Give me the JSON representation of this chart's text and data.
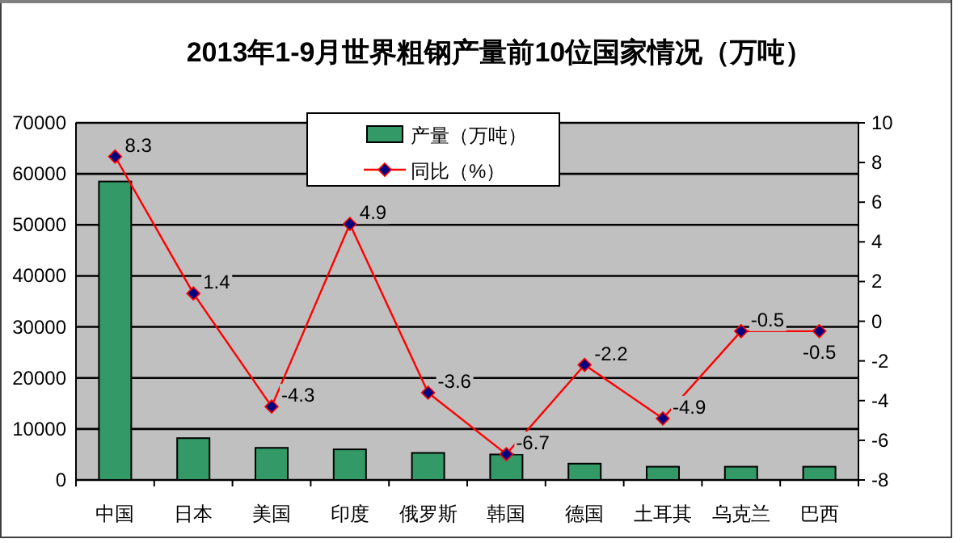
{
  "chart_data": {
    "type": "bar",
    "title": "2013年1-9月世界粗钢产量前10位国家情况（万吨）",
    "categories": [
      "中国",
      "日本",
      "美国",
      "印度",
      "俄罗斯",
      "韩国",
      "德国",
      "土耳其",
      "乌克兰",
      "巴西"
    ],
    "series": [
      {
        "name": "产量（万吨）",
        "color": "#339966",
        "values": [
          58500,
          8200,
          6300,
          6000,
          5300,
          5000,
          3200,
          2600,
          2600,
          2600
        ]
      },
      {
        "name": "同比（%）",
        "type": "line",
        "axis": "y2",
        "color": "#ff0000",
        "marker": "diamond",
        "data_labels": true,
        "values": [
          8.3,
          1.4,
          -4.3,
          4.9,
          -3.6,
          -6.7,
          -2.2,
          -4.9,
          -0.5,
          -0.5
        ]
      }
    ],
    "ylim": [
      0,
      70000
    ],
    "yticks": [
      0,
      10000,
      20000,
      30000,
      40000,
      50000,
      60000,
      70000
    ],
    "y2lim": [
      -8,
      10
    ],
    "y2ticks": [
      -8,
      -6,
      -4,
      -2,
      0,
      2,
      4,
      6,
      8,
      10
    ],
    "grid": "y",
    "legend": "top"
  }
}
